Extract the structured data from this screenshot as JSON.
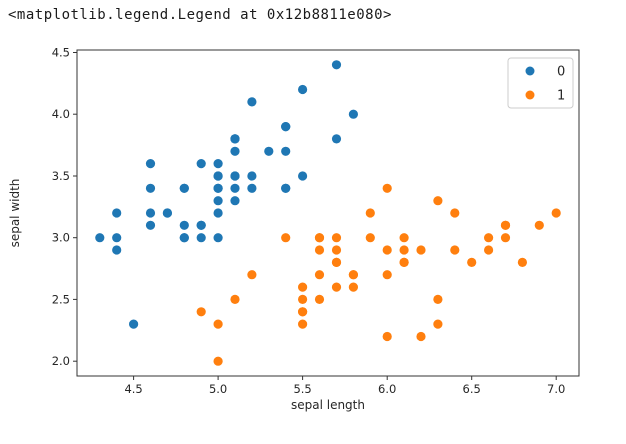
{
  "output_text": "<matplotlib.legend.Legend at 0x12b8811e080>",
  "colors": {
    "background": "#ffffff",
    "spine": "#333333",
    "tick_label": "#262626",
    "legend_border": "#cccccc",
    "class0": "#1f77b4",
    "class1": "#ff7f0e"
  },
  "chart_data": {
    "type": "scatter",
    "title": "",
    "xlabel": "sepal length",
    "ylabel": "sepal width",
    "xlim": [
      4.165,
      7.135
    ],
    "ylim": [
      1.88,
      4.52
    ],
    "xticks": [
      "4.5",
      "5.0",
      "5.5",
      "6.0",
      "6.5",
      "7.0"
    ],
    "yticks": [
      "2.0",
      "2.5",
      "3.0",
      "3.5",
      "4.0",
      "4.5"
    ],
    "grid": false,
    "marker_radius": 4.6,
    "legend": {
      "position": "upper-right"
    },
    "series": [
      {
        "name": "0",
        "color": "#1f77b4",
        "points": [
          [
            5.1,
            3.5
          ],
          [
            4.9,
            3.0
          ],
          [
            4.7,
            3.2
          ],
          [
            4.6,
            3.1
          ],
          [
            5.0,
            3.6
          ],
          [
            5.4,
            3.9
          ],
          [
            4.6,
            3.4
          ],
          [
            5.0,
            3.4
          ],
          [
            4.4,
            2.9
          ],
          [
            4.9,
            3.1
          ],
          [
            5.4,
            3.7
          ],
          [
            4.8,
            3.4
          ],
          [
            4.8,
            3.0
          ],
          [
            4.3,
            3.0
          ],
          [
            5.8,
            4.0
          ],
          [
            5.7,
            4.4
          ],
          [
            5.4,
            3.9
          ],
          [
            5.1,
            3.5
          ],
          [
            5.7,
            3.8
          ],
          [
            5.1,
            3.8
          ],
          [
            5.4,
            3.4
          ],
          [
            5.1,
            3.7
          ],
          [
            4.6,
            3.6
          ],
          [
            5.1,
            3.3
          ],
          [
            4.8,
            3.4
          ],
          [
            5.0,
            3.0
          ],
          [
            5.0,
            3.4
          ],
          [
            5.2,
            3.5
          ],
          [
            5.2,
            3.4
          ],
          [
            4.7,
            3.2
          ],
          [
            4.8,
            3.1
          ],
          [
            5.4,
            3.4
          ],
          [
            5.2,
            4.1
          ],
          [
            5.5,
            4.2
          ],
          [
            4.9,
            3.1
          ],
          [
            5.0,
            3.2
          ],
          [
            5.5,
            3.5
          ],
          [
            4.9,
            3.6
          ],
          [
            4.4,
            3.0
          ],
          [
            5.1,
            3.4
          ],
          [
            5.0,
            3.5
          ],
          [
            4.5,
            2.3
          ],
          [
            4.4,
            3.2
          ],
          [
            5.0,
            3.5
          ],
          [
            5.1,
            3.8
          ],
          [
            4.8,
            3.0
          ],
          [
            5.1,
            3.8
          ],
          [
            4.6,
            3.2
          ],
          [
            5.3,
            3.7
          ],
          [
            5.0,
            3.3
          ]
        ]
      },
      {
        "name": "1",
        "color": "#ff7f0e",
        "points": [
          [
            7.0,
            3.2
          ],
          [
            6.4,
            3.2
          ],
          [
            6.9,
            3.1
          ],
          [
            5.5,
            2.3
          ],
          [
            6.5,
            2.8
          ],
          [
            5.7,
            2.8
          ],
          [
            6.3,
            3.3
          ],
          [
            4.9,
            2.4
          ],
          [
            6.6,
            2.9
          ],
          [
            5.2,
            2.7
          ],
          [
            5.0,
            2.0
          ],
          [
            5.9,
            3.0
          ],
          [
            6.0,
            2.2
          ],
          [
            6.1,
            2.9
          ],
          [
            5.6,
            2.9
          ],
          [
            6.7,
            3.1
          ],
          [
            5.6,
            3.0
          ],
          [
            5.8,
            2.7
          ],
          [
            6.2,
            2.2
          ],
          [
            5.6,
            2.5
          ],
          [
            5.9,
            3.2
          ],
          [
            6.1,
            2.8
          ],
          [
            6.3,
            2.5
          ],
          [
            6.1,
            2.8
          ],
          [
            6.4,
            2.9
          ],
          [
            6.6,
            3.0
          ],
          [
            6.8,
            2.8
          ],
          [
            6.7,
            3.0
          ],
          [
            6.0,
            2.9
          ],
          [
            5.7,
            2.6
          ],
          [
            5.5,
            2.4
          ],
          [
            5.5,
            2.4
          ],
          [
            5.8,
            2.7
          ],
          [
            6.0,
            2.7
          ],
          [
            5.4,
            3.0
          ],
          [
            6.0,
            3.4
          ],
          [
            6.7,
            3.1
          ],
          [
            6.3,
            2.3
          ],
          [
            5.6,
            3.0
          ],
          [
            5.5,
            2.5
          ],
          [
            5.5,
            2.6
          ],
          [
            6.1,
            3.0
          ],
          [
            5.8,
            2.6
          ],
          [
            5.0,
            2.3
          ],
          [
            5.6,
            2.7
          ],
          [
            5.7,
            3.0
          ],
          [
            5.7,
            2.9
          ],
          [
            6.2,
            2.9
          ],
          [
            5.1,
            2.5
          ],
          [
            5.7,
            2.8
          ]
        ]
      }
    ]
  }
}
